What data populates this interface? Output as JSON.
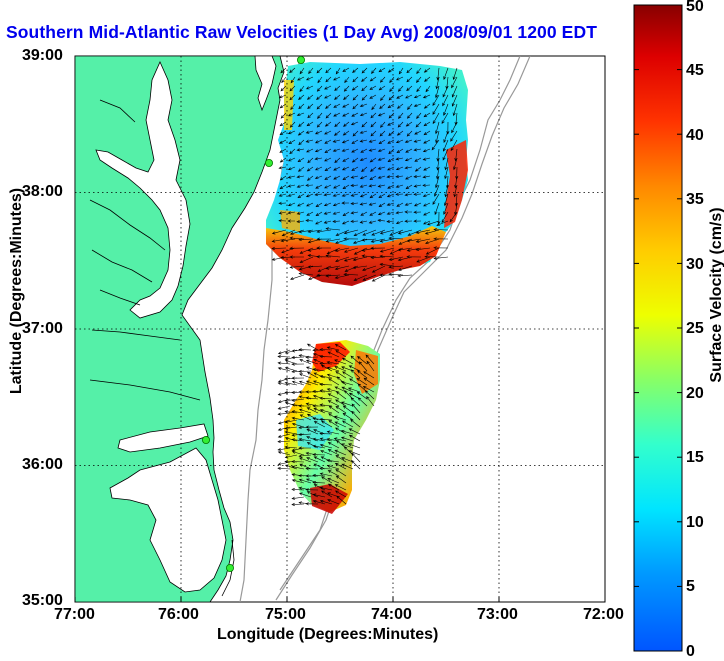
{
  "title": "Southern Mid-Atlantic Raw Velocities (1 Day Avg) 2008/09/01 1200 EDT",
  "xlabel": "Longitude (Degrees:Minutes)",
  "ylabel": "Latitude (Degrees:Minutes)",
  "colorbar": {
    "label": "Surface Velocity (cm/s)",
    "ticks": [
      "0",
      "5",
      "10",
      "15",
      "20",
      "25",
      "30",
      "35",
      "40",
      "45",
      "50"
    ],
    "min": 0,
    "max": 50
  },
  "x_ticks": [
    "77:00",
    "76:00",
    "75:00",
    "74:00",
    "73:00",
    "72:00"
  ],
  "y_ticks": [
    "39:00",
    "38:00",
    "37:00",
    "36:00",
    "35:00"
  ],
  "map": {
    "lon_range": [
      -77,
      -72
    ],
    "lat_range": [
      35,
      39
    ],
    "grid": "dotted",
    "land_color": "#55f0a8",
    "water_color": "#ffffff",
    "shelf_contour_color": "#999999"
  },
  "stations": [
    {
      "name": "station-1",
      "lon": -74.85,
      "lat": 38.98
    },
    {
      "name": "station-2",
      "lon": -75.15,
      "lat": 38.23
    },
    {
      "name": "station-3",
      "lon": -75.7,
      "lat": 36.17
    },
    {
      "name": "station-4",
      "lon": -75.5,
      "lat": 35.25
    }
  ],
  "regions": [
    {
      "name": "northern-velocity-field",
      "lon": [
        -75.05,
        -73.3
      ],
      "lat": [
        37.3,
        38.96
      ],
      "speed_note": "low in center (~10 cm/s), high along southern edge (~45 cm/s)"
    },
    {
      "name": "southern-velocity-field",
      "lon": [
        -75.1,
        -74.2
      ],
      "lat": [
        35.65,
        36.9
      ],
      "speed_note": "mixed 15-50 cm/s"
    }
  ]
}
